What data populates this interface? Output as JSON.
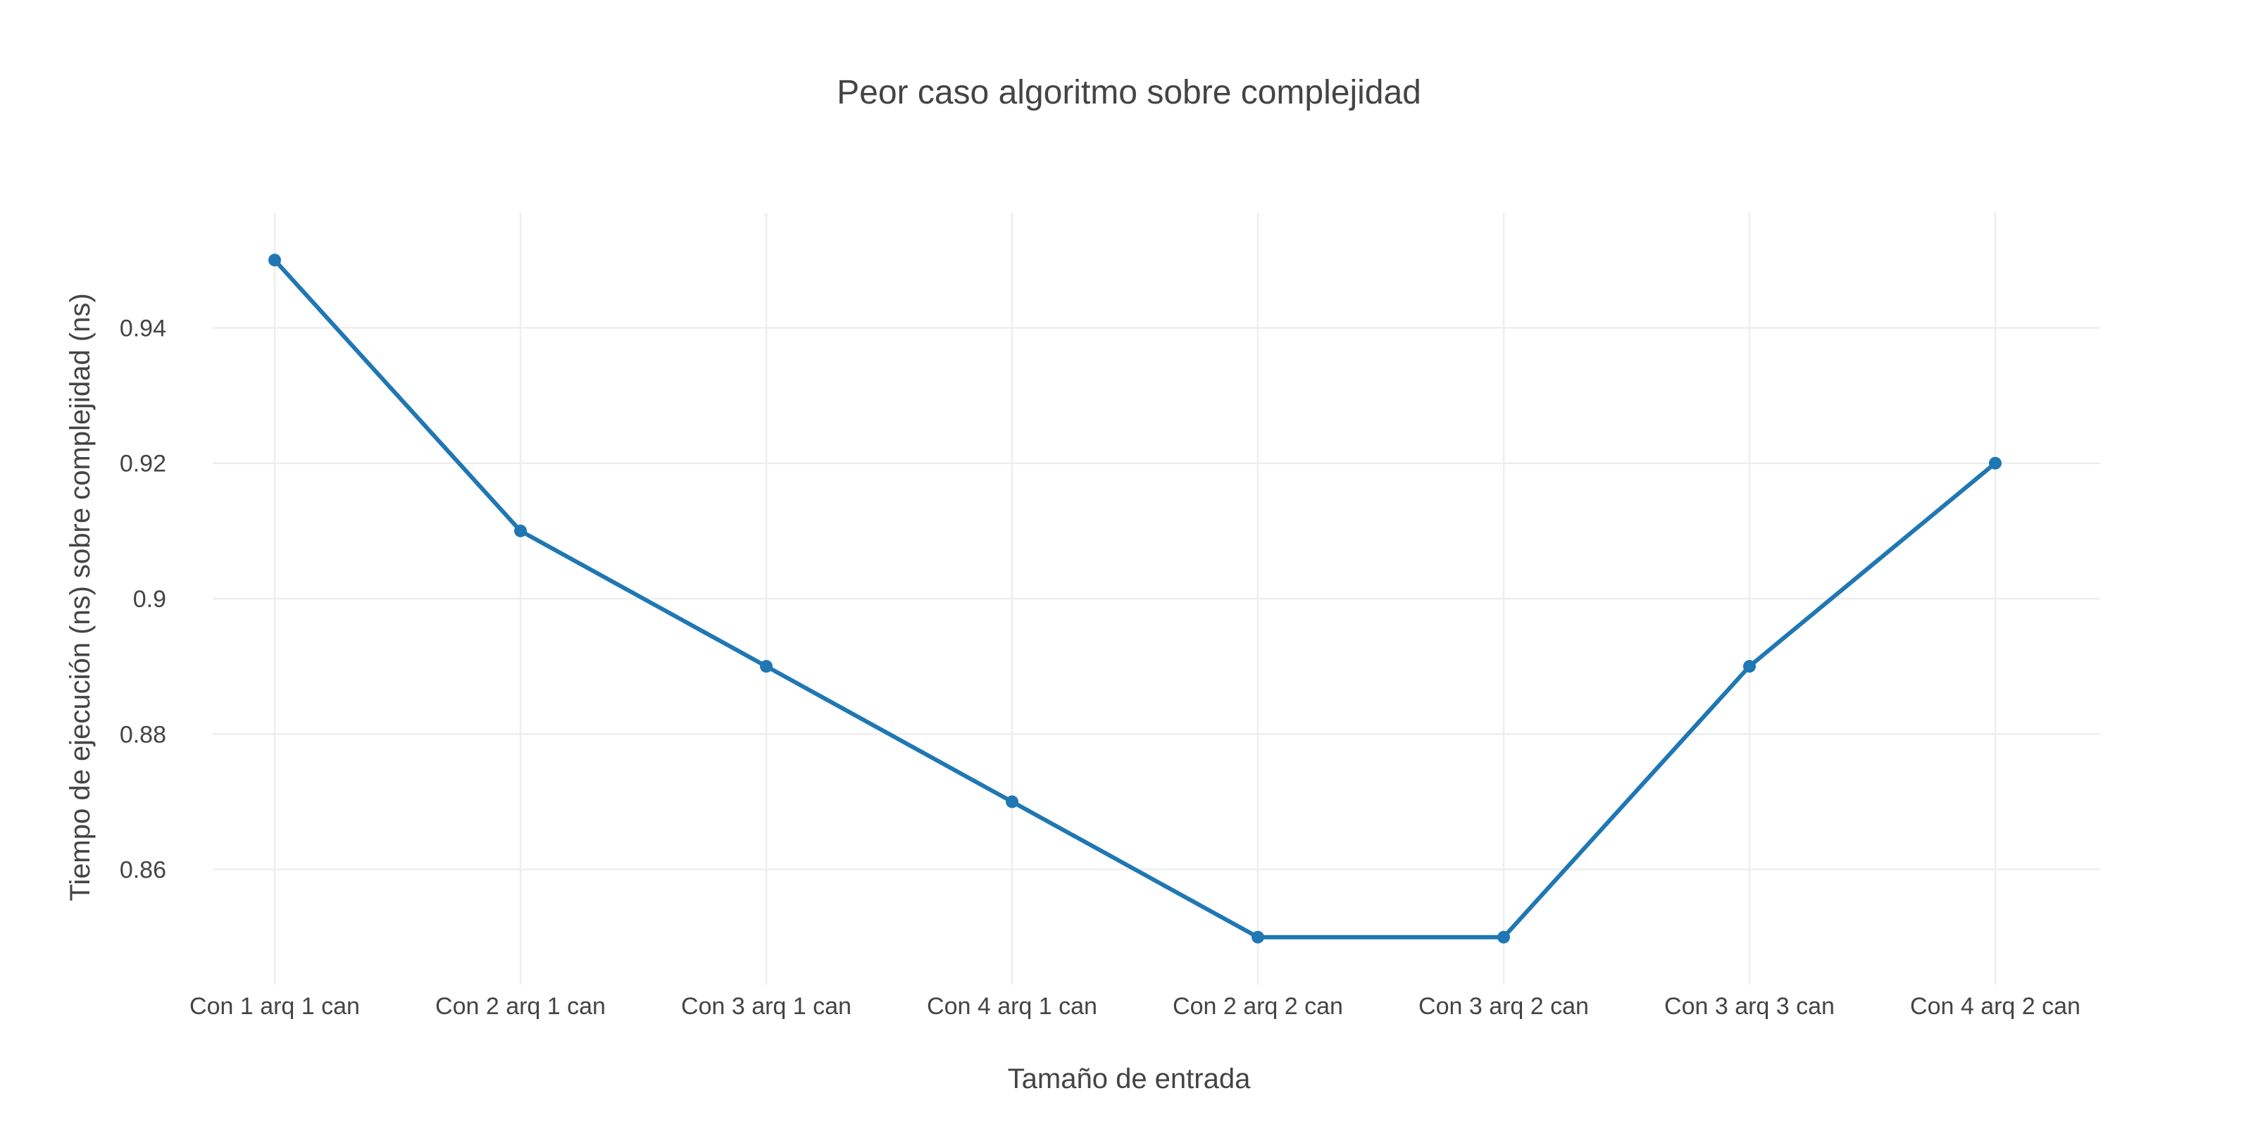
{
  "chart_data": {
    "type": "line",
    "title": "Peor caso algoritmo sobre complejidad",
    "xlabel": "Tamaño de entrada",
    "ylabel": "Tiempo de ejecución (ns) sobre complejidad (ns)",
    "categories": [
      "Con 1 arq 1 can",
      "Con 2 arq 1 can",
      "Con 3 arq 1 can",
      "Con 4 arq 1 can",
      "Con 2 arq 2 can",
      "Con 3 arq 2 can",
      "Con 3 arq 3 can",
      "Con 4 arq 2 can"
    ],
    "series": [
      {
        "values": [
          0.95,
          0.91,
          0.89,
          0.87,
          0.85,
          0.85,
          0.89,
          0.92
        ],
        "color": "#1f77b4"
      }
    ],
    "ylim": [
      0.843,
      0.957
    ],
    "yticks": [
      0.86,
      0.88,
      0.9,
      0.92,
      0.94
    ],
    "ytick_labels": [
      "0.86",
      "0.88",
      "0.9",
      "0.92",
      "0.94"
    ],
    "grid": true,
    "legend": false
  }
}
